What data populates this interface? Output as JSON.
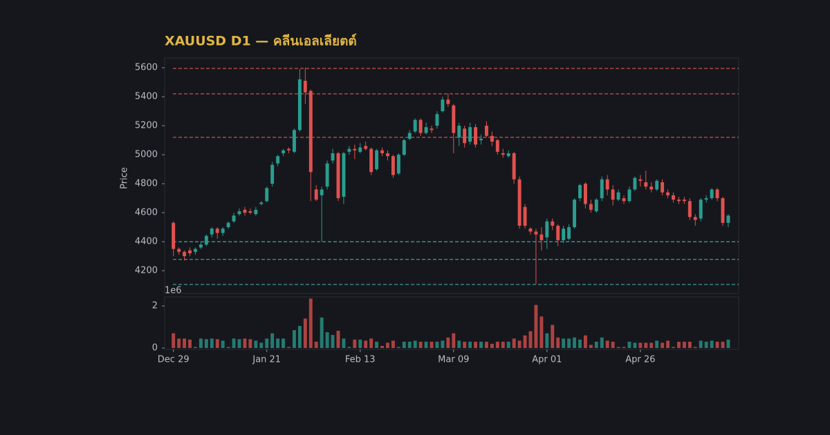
{
  "chart_data": {
    "type": "candlestick",
    "title": "XAUUSD D1 — คลีนเอลเลียตต์",
    "ylabel": "Price",
    "up_color": "#2a9d8f",
    "down_color": "#e0524f",
    "xlim": [
      -1.6,
      102.9
    ],
    "xticks": [
      {
        "value": 0,
        "label": "Dec 29"
      },
      {
        "value": 17,
        "label": "Jan 21"
      },
      {
        "value": 34,
        "label": "Feb 13"
      },
      {
        "value": 51,
        "label": "Mar 09"
      },
      {
        "value": 68,
        "label": "Apr 01"
      },
      {
        "value": 85,
        "label": "Apr 26"
      }
    ],
    "ylim": [
      4043,
      5667
    ],
    "yticks": [
      4200,
      4400,
      4600,
      4800,
      5000,
      5200,
      5400,
      5600
    ],
    "levels": [
      {
        "value": 5595,
        "color": "#c8504f"
      },
      {
        "value": 5420,
        "color": "#c8504f"
      },
      {
        "value": 5120,
        "color": "#c8504f"
      },
      {
        "value": 4400,
        "color": "#3e9aa0"
      },
      {
        "value": 4278,
        "color": "#3e9aa0"
      },
      {
        "value": 4105,
        "color": "#3e9aa0"
      }
    ],
    "open": [
      4530,
      4350,
      4330,
      4340,
      4330,
      4360,
      4380,
      4450,
      4490,
      4460,
      4500,
      4540,
      4590,
      4620,
      4610,
      4590,
      4660,
      4680,
      4800,
      4940,
      5010,
      5040,
      5020,
      5170,
      5510,
      5440,
      4760,
      4720,
      4780,
      4960,
      5010,
      4710,
      5020,
      5040,
      5020,
      5060,
      5040,
      4900,
      5030,
      5010,
      4990,
      4870,
      5000,
      5110,
      5160,
      5240,
      5150,
      5180,
      5200,
      5300,
      5380,
      5340,
      5120,
      5180,
      5090,
      5190,
      5100,
      5200,
      5130,
      5100,
      5010,
      4990,
      5010,
      4830,
      4640,
      4490,
      4470,
      4450,
      4430,
      4540,
      4510,
      4410,
      4420,
      4500,
      4700,
      4800,
      4660,
      4610,
      4700,
      4830,
      4760,
      4690,
      4700,
      4680,
      4760,
      4830,
      4810,
      4780,
      4760,
      4810,
      4740,
      4720,
      4690,
      4690,
      4680,
      4570,
      4560,
      4690,
      4700,
      4760,
      4700,
      4530
    ],
    "high": [
      4540,
      4360,
      4340,
      4360,
      4360,
      4400,
      4450,
      4500,
      4500,
      4500,
      4540,
      4600,
      4630,
      4640,
      4630,
      4640,
      4680,
      4780,
      4950,
      5000,
      5040,
      5050,
      5180,
      5590,
      5600,
      5450,
      4790,
      4780,
      4960,
      5040,
      5020,
      5020,
      5060,
      5070,
      5080,
      5090,
      5050,
      5040,
      5050,
      5030,
      5000,
      5010,
      5110,
      5170,
      5250,
      5250,
      5220,
      5200,
      5300,
      5400,
      5420,
      5350,
      5220,
      5200,
      5220,
      5210,
      5140,
      5230,
      5160,
      5110,
      5040,
      5030,
      5020,
      4850,
      4660,
      4500,
      4490,
      4500,
      4560,
      4560,
      4520,
      4510,
      4520,
      4700,
      4800,
      4810,
      4690,
      4700,
      4850,
      4860,
      4790,
      4760,
      4720,
      4780,
      4850,
      4860,
      4890,
      4810,
      4830,
      4830,
      4760,
      4740,
      4710,
      4710,
      4700,
      4590,
      4700,
      4720,
      4770,
      4770,
      4710,
      4590
    ],
    "low": [
      4300,
      4310,
      4270,
      4300,
      4310,
      4350,
      4370,
      4430,
      4420,
      4440,
      4490,
      4530,
      4580,
      4580,
      4590,
      4580,
      4650,
      4670,
      4780,
      4920,
      4990,
      5010,
      5010,
      5160,
      5350,
      4680,
      4680,
      4400,
      4760,
      4940,
      4680,
      4660,
      5000,
      4970,
      5010,
      5030,
      4860,
      4890,
      4990,
      4960,
      4840,
      4860,
      4990,
      5100,
      5150,
      5130,
      5140,
      5150,
      5180,
      5290,
      5330,
      5010,
      5060,
      5050,
      5070,
      5050,
      5070,
      5120,
      5060,
      5000,
      4980,
      4980,
      4800,
      4490,
      4490,
      4450,
      4110,
      4340,
      4350,
      4480,
      4370,
      4390,
      4410,
      4490,
      4680,
      4630,
      4600,
      4600,
      4680,
      4720,
      4650,
      4680,
      4660,
      4670,
      4750,
      4780,
      4760,
      4740,
      4750,
      4720,
      4700,
      4670,
      4660,
      4660,
      4550,
      4510,
      4540,
      4670,
      4690,
      4680,
      4510,
      4500
    ],
    "close": [
      4350,
      4330,
      4300,
      4320,
      4350,
      4380,
      4440,
      4490,
      4460,
      4490,
      4530,
      4580,
      4610,
      4600,
      4600,
      4620,
      4670,
      4770,
      4930,
      4990,
      5030,
      5030,
      5170,
      5520,
      5430,
      4880,
      4690,
      4760,
      4940,
      5010,
      4700,
      5010,
      5040,
      5030,
      5050,
      5040,
      4880,
      5030,
      5010,
      4990,
      4860,
      5000,
      5100,
      5150,
      5240,
      5150,
      5190,
      5170,
      5280,
      5380,
      5350,
      5150,
      5200,
      5080,
      5190,
      5070,
      5110,
      5130,
      5090,
      5020,
      5000,
      5010,
      4830,
      4510,
      4510,
      4470,
      4450,
      4410,
      4540,
      4510,
      4410,
      4490,
      4500,
      4690,
      4790,
      4660,
      4620,
      4690,
      4830,
      4760,
      4690,
      4740,
      4680,
      4760,
      4840,
      4820,
      4780,
      4760,
      4820,
      4740,
      4720,
      4690,
      4680,
      4680,
      4570,
      4550,
      4690,
      4700,
      4760,
      4700,
      4530,
      4580
    ],
    "volume": [
      700000,
      450000,
      450000,
      400000,
      50000,
      450000,
      420000,
      450000,
      420000,
      350000,
      50000,
      450000,
      420000,
      450000,
      420000,
      350000,
      250000,
      450000,
      700000,
      450000,
      450000,
      50000,
      850000,
      1050000,
      1400000,
      2350000,
      300000,
      1450000,
      750000,
      620000,
      820000,
      450000,
      50000,
      400000,
      400000,
      350000,
      450000,
      300000,
      100000,
      250000,
      350000,
      50000,
      300000,
      300000,
      350000,
      300000,
      300000,
      300000,
      300000,
      350000,
      500000,
      700000,
      350000,
      300000,
      300000,
      300000,
      300000,
      300000,
      200000,
      300000,
      300000,
      300000,
      450000,
      350000,
      600000,
      800000,
      2050000,
      1500000,
      700000,
      1100000,
      500000,
      450000,
      450000,
      500000,
      400000,
      600000,
      150000,
      300000,
      500000,
      350000,
      300000,
      50000,
      50000,
      300000,
      250000,
      250000,
      250000,
      250000,
      350000,
      250000,
      350000,
      50000,
      300000,
      300000,
      300000,
      50000,
      350000,
      300000,
      350000,
      300000,
      300000,
      400000
    ],
    "vlim": [
      -65000,
      2430000
    ],
    "vticks": [
      {
        "value": 0,
        "label": "0"
      },
      {
        "value": 2000000,
        "label": "2"
      }
    ],
    "voffset_label": "1e6"
  }
}
